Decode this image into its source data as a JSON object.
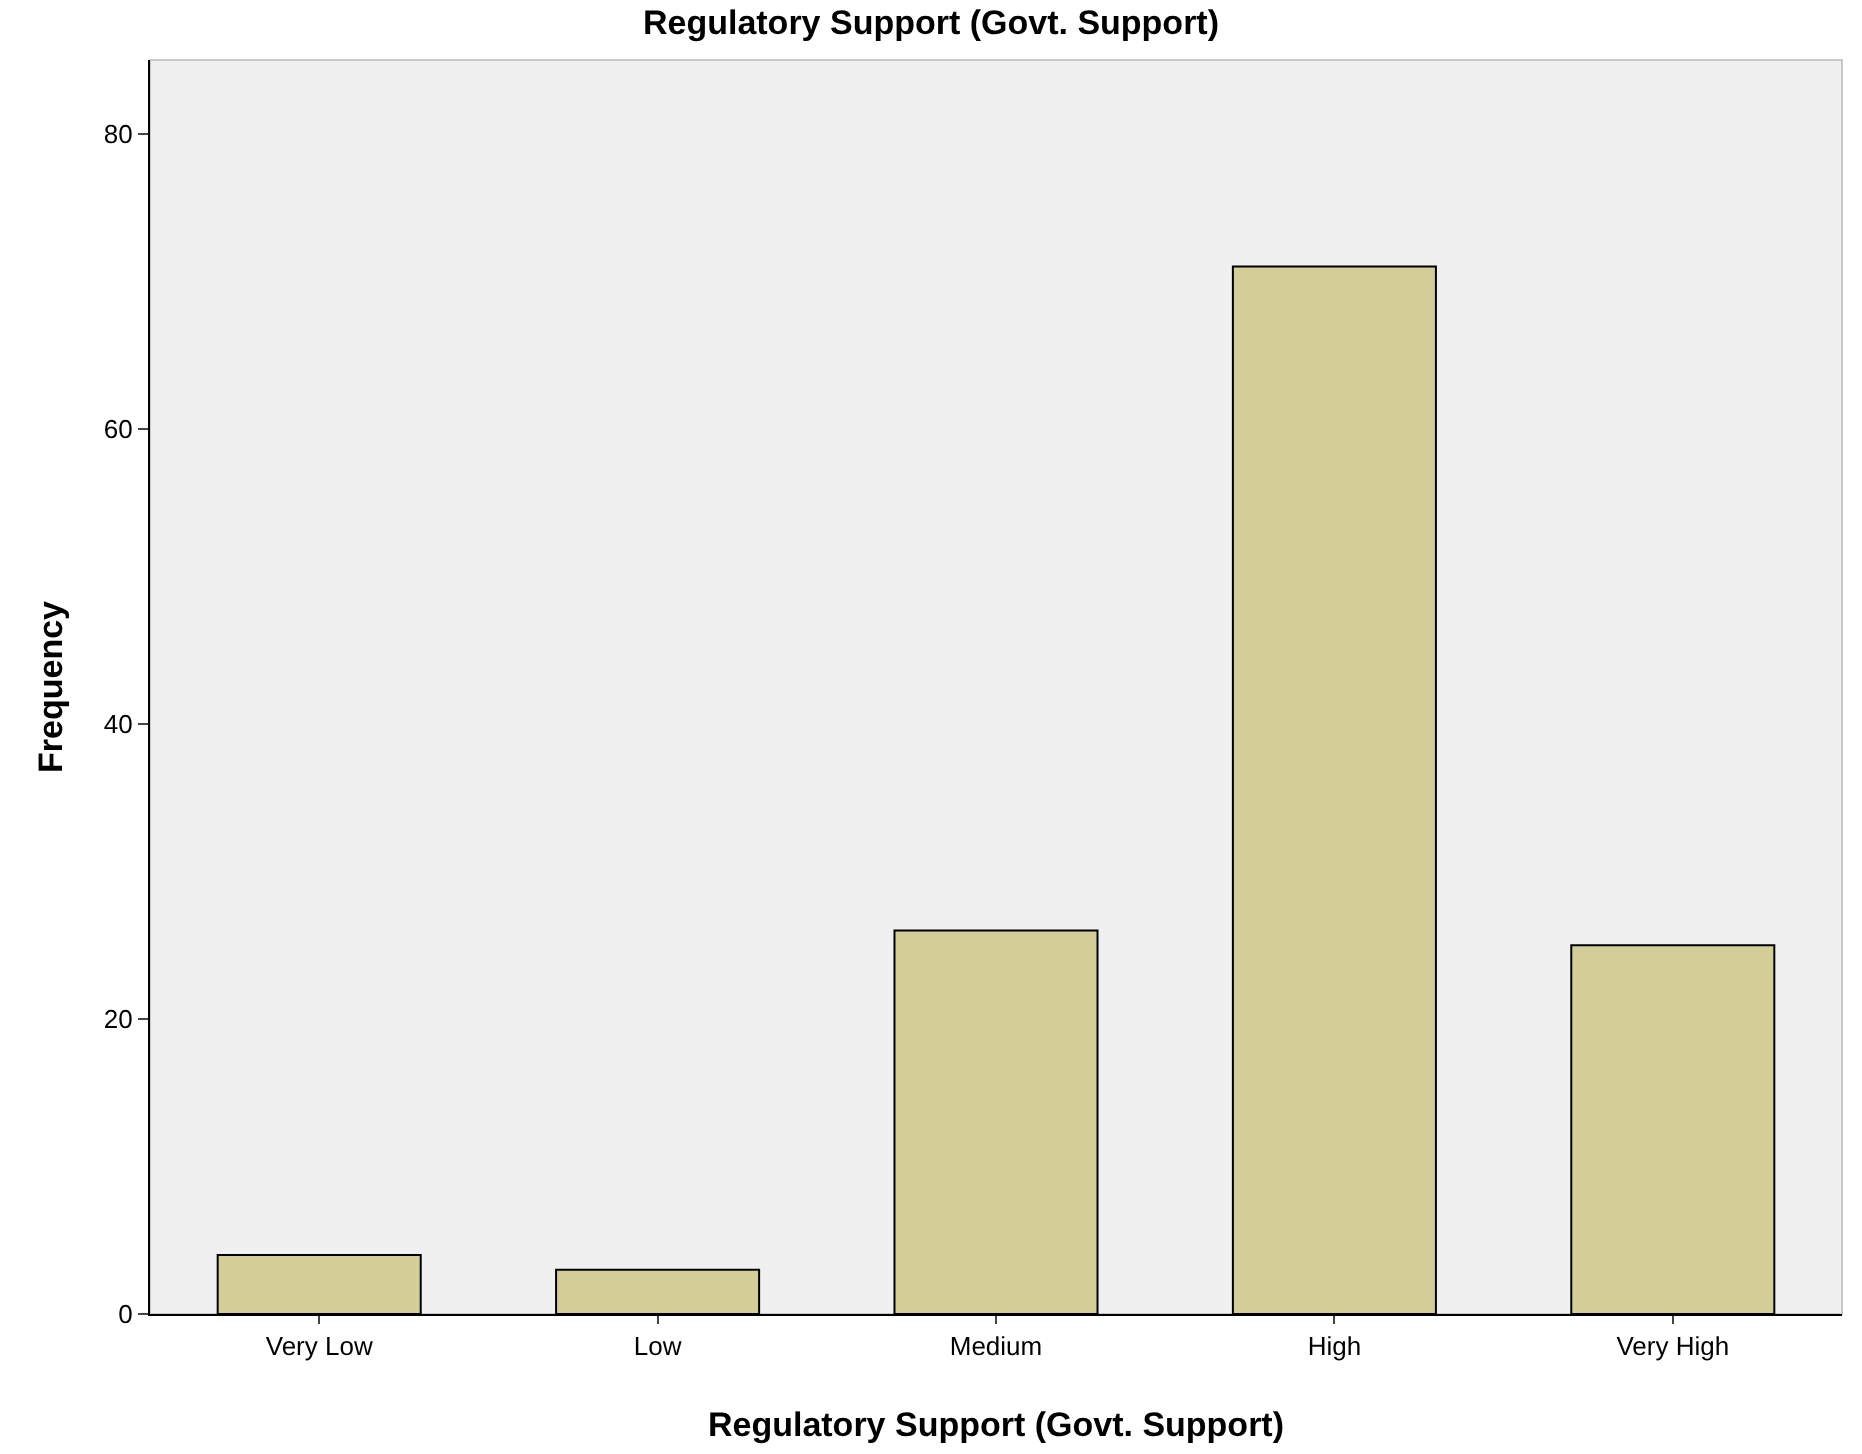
{
  "chart_data": {
    "type": "bar",
    "title": "Regulatory Support (Govt. Support)",
    "xlabel": "Regulatory Support (Govt. Support)",
    "ylabel": "Frequency",
    "categories": [
      "Very Low",
      "Low",
      "Medium",
      "High",
      "Very High"
    ],
    "values": [
      4,
      3,
      26,
      71,
      25
    ],
    "color": "#d3ce97",
    "ylim": [
      0,
      85
    ],
    "yticks": [
      0,
      20,
      40,
      60,
      80
    ],
    "grid": false,
    "legend": false
  }
}
